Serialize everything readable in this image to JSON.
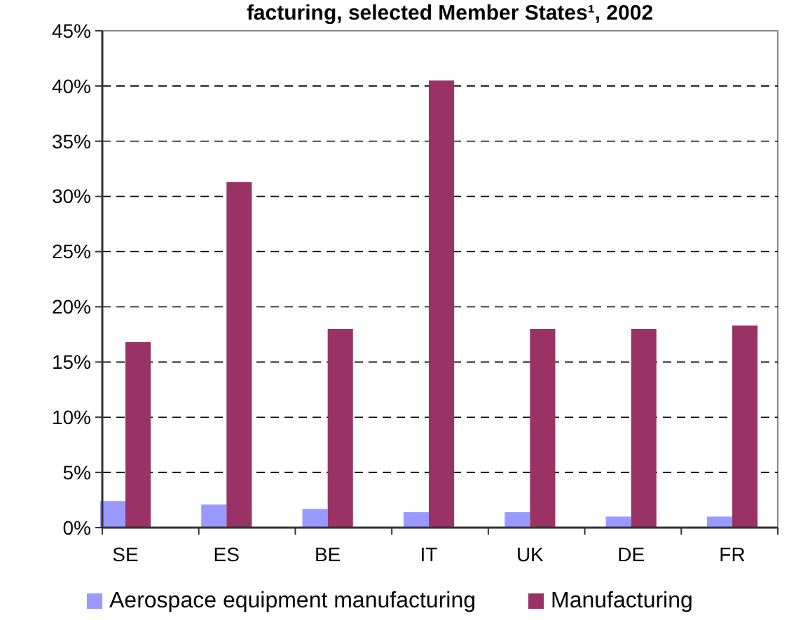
{
  "chart_data": {
    "type": "bar",
    "title": "facturing, selected Member States¹, 2002",
    "categories": [
      "SE",
      "ES",
      "BE",
      "IT",
      "UK",
      "DE",
      "FR"
    ],
    "series": [
      {
        "name": "Aerospace equipment manufacturing",
        "color": "#9999ff",
        "values": [
          2.4,
          2.1,
          1.7,
          1.4,
          1.4,
          1.0,
          1.0
        ]
      },
      {
        "name": "Manufacturing",
        "color": "#993366",
        "values": [
          16.8,
          31.3,
          18.0,
          40.5,
          18.0,
          18.0,
          18.3
        ]
      }
    ],
    "ylim": [
      0,
      45
    ],
    "yticks": [
      {
        "value": 0,
        "label": "0%"
      },
      {
        "value": 5,
        "label": "5%"
      },
      {
        "value": 10,
        "label": "10%"
      },
      {
        "value": 15,
        "label": "15%"
      },
      {
        "value": 20,
        "label": "20%"
      },
      {
        "value": 25,
        "label": "25%"
      },
      {
        "value": 30,
        "label": "30%"
      },
      {
        "value": 35,
        "label": "35%"
      },
      {
        "value": 40,
        "label": "40%"
      },
      {
        "value": 45,
        "label": "45%"
      }
    ],
    "grid": "y",
    "legend": "bottom"
  }
}
